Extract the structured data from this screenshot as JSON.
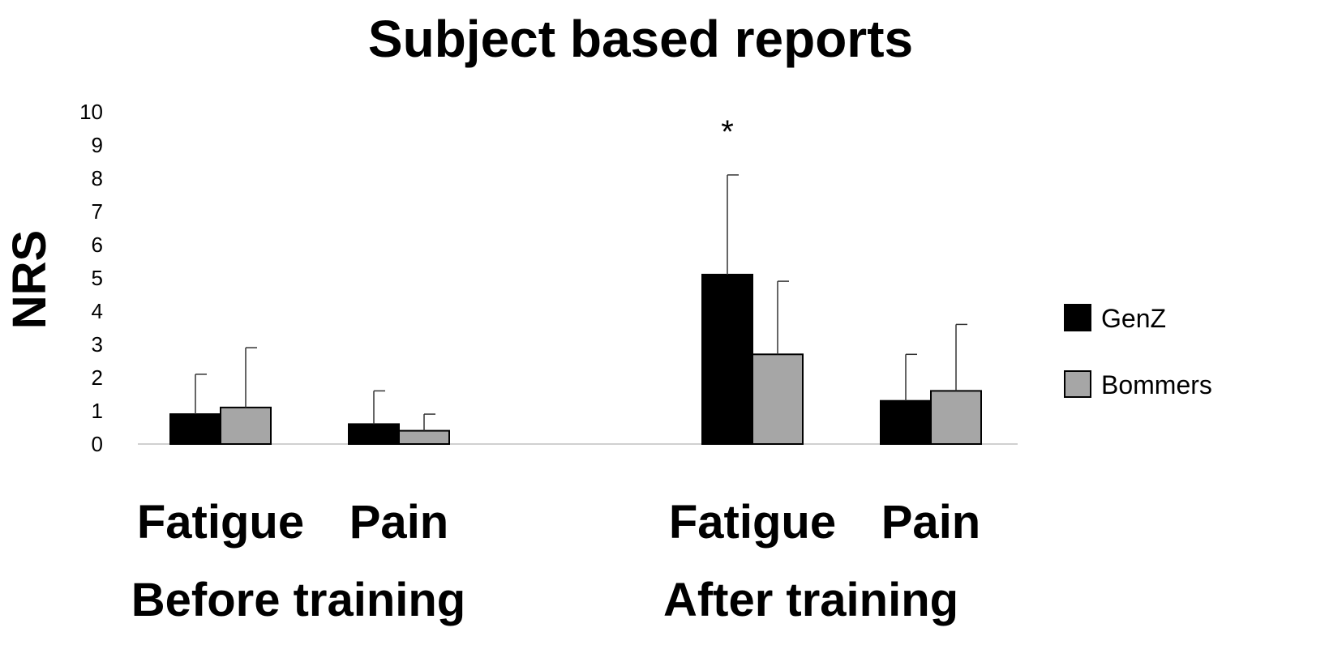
{
  "chart_data": {
    "type": "bar",
    "title": "Subject based reports",
    "ylabel": "NRS",
    "xlabel": "",
    "ylim": [
      0,
      10
    ],
    "yticks": [
      0,
      1,
      2,
      3,
      4,
      5,
      6,
      7,
      8,
      9,
      10
    ],
    "groups": [
      "Before training",
      "After training"
    ],
    "categories": [
      "Fatigue",
      "Pain",
      "Fatigue",
      "Pain"
    ],
    "category_group": [
      0,
      0,
      1,
      1
    ],
    "series": [
      {
        "name": "GenZ",
        "color": "#000000",
        "values": [
          0.9,
          0.6,
          5.1,
          1.3
        ],
        "error": [
          1.2,
          1.0,
          3.0,
          1.4
        ]
      },
      {
        "name": "Bommers",
        "color": "#a6a6a6",
        "values": [
          1.1,
          0.4,
          2.7,
          1.6
        ],
        "error": [
          1.8,
          0.5,
          2.2,
          2.0
        ]
      }
    ],
    "annotations": [
      {
        "text": "*",
        "category_index": 2,
        "series_index": 0
      }
    ],
    "grid": false,
    "legend": "right"
  }
}
